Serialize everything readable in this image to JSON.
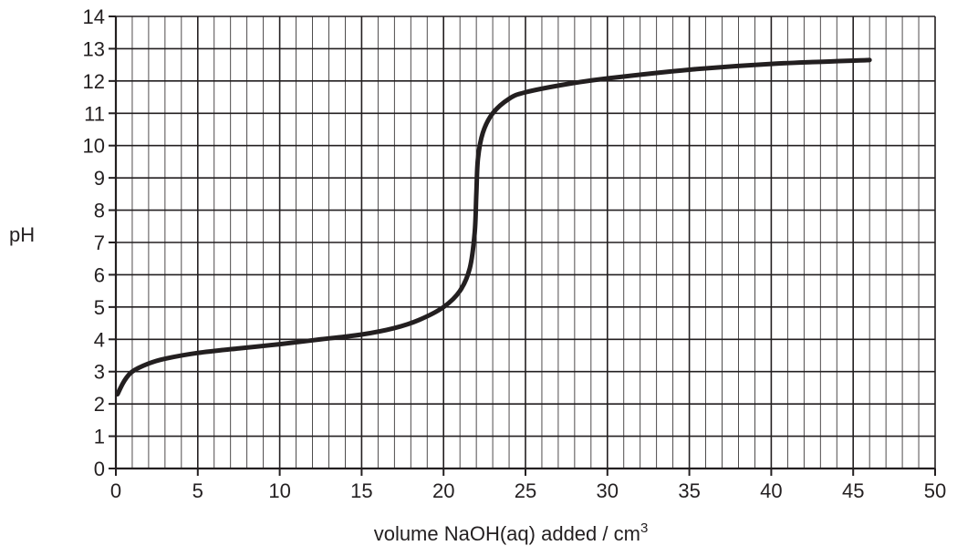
{
  "chart_data": {
    "type": "line",
    "title": "",
    "xlabel": "volume NaOH(aq) added / cm",
    "xlabel_superscript": "3",
    "ylabel": "pH",
    "xlim": [
      0,
      50
    ],
    "ylim": [
      0,
      14
    ],
    "x_major_ticks": [
      0,
      5,
      10,
      15,
      20,
      25,
      30,
      35,
      40,
      45,
      50
    ],
    "x_tick_labels": [
      "0",
      "5",
      "10",
      "15",
      "20",
      "25",
      "30",
      "35",
      "40",
      "45",
      "50"
    ],
    "y_major_ticks": [
      0,
      1,
      2,
      3,
      4,
      5,
      6,
      7,
      8,
      9,
      10,
      11,
      12,
      13,
      14
    ],
    "y_tick_labels": [
      "0",
      "1",
      "2",
      "3",
      "4",
      "5",
      "6",
      "7",
      "8",
      "9",
      "10",
      "11",
      "12",
      "13",
      "14"
    ],
    "x_minor_step": 1,
    "y_minor_step": 1,
    "grid": true,
    "legend": "none",
    "colors": {
      "curve": "#231f20",
      "grid": "#231f20",
      "text": "#231f20"
    },
    "series": [
      {
        "points": [
          [
            0.1,
            2.3
          ],
          [
            0.5,
            2.7
          ],
          [
            1.0,
            3.0
          ],
          [
            2.0,
            3.25
          ],
          [
            3.0,
            3.4
          ],
          [
            5.0,
            3.58
          ],
          [
            7.5,
            3.72
          ],
          [
            10.0,
            3.85
          ],
          [
            12.5,
            4.0
          ],
          [
            15.0,
            4.15
          ],
          [
            17.0,
            4.35
          ],
          [
            18.5,
            4.6
          ],
          [
            20.0,
            5.0
          ],
          [
            21.0,
            5.5
          ],
          [
            21.6,
            6.2
          ],
          [
            21.9,
            7.3
          ],
          [
            22.0,
            8.5
          ],
          [
            22.1,
            9.6
          ],
          [
            22.4,
            10.4
          ],
          [
            23.0,
            11.0
          ],
          [
            24.0,
            11.45
          ],
          [
            25.0,
            11.65
          ],
          [
            27.5,
            11.9
          ],
          [
            30.0,
            12.08
          ],
          [
            35.0,
            12.35
          ],
          [
            40.0,
            12.53
          ],
          [
            46.0,
            12.65
          ]
        ]
      }
    ]
  }
}
